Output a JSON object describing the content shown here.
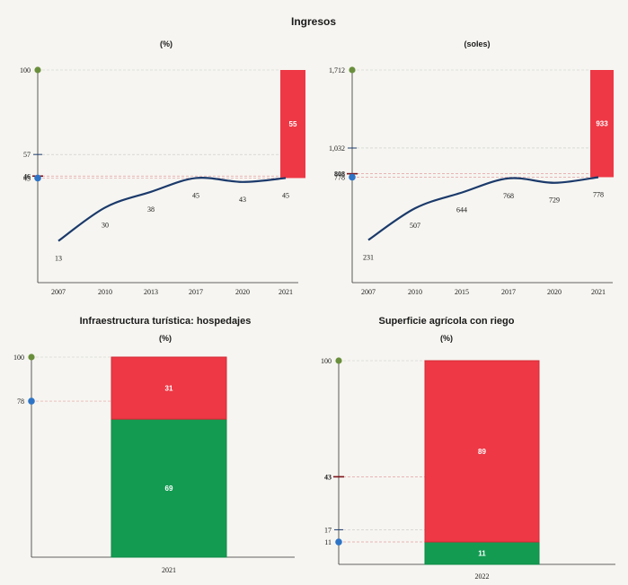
{
  "page": {
    "top_title": "Ingresos"
  },
  "colors": {
    "red": "#ee3845",
    "green": "#139b52",
    "line": "#1b3a6b",
    "blue_dot": "#2e74c6",
    "green_dot": "#6a8f3c",
    "dark_red": "#7a1216",
    "dashed_red": "#e4a0a0"
  },
  "chart_data": [
    {
      "type": "line",
      "subtitle": "(%)",
      "x": [
        "2007",
        "2010",
        "2013",
        "2017",
        "2020",
        "2021"
      ],
      "values": [
        13,
        30,
        38,
        45,
        43,
        45
      ],
      "data_labels": [
        "13",
        "30",
        "38",
        "45",
        "43",
        "45"
      ],
      "ylim": [
        0,
        100
      ],
      "axis_marks": [
        {
          "value": 100,
          "label": "100",
          "kind": "green-dot"
        },
        {
          "value": 57,
          "label": "57",
          "kind": "tick"
        },
        {
          "value": 46,
          "label": "46",
          "kind": "red-tick"
        },
        {
          "value": 45,
          "label": "45",
          "kind": "blue-dot"
        }
      ],
      "gap_bar": {
        "from": 45,
        "to": 100,
        "label": "55"
      }
    },
    {
      "type": "line",
      "subtitle": "(soles)",
      "x": [
        "2007",
        "2010",
        "2015",
        "2017",
        "2020",
        "2021"
      ],
      "values": [
        231,
        507,
        644,
        768,
        729,
        778
      ],
      "data_labels": [
        "231",
        "507",
        "644",
        "768",
        "729",
        "778"
      ],
      "ylim": [
        0,
        1712
      ],
      "axis_marks": [
        {
          "value": 1712,
          "label": "1,712",
          "kind": "green-dot"
        },
        {
          "value": 1032,
          "label": "1,032",
          "kind": "tick"
        },
        {
          "value": 808,
          "label": "808",
          "kind": "red-tick"
        },
        {
          "value": 778,
          "label": "778",
          "kind": "blue-dot"
        }
      ],
      "gap_bar": {
        "from": 778,
        "to": 1712,
        "label": "933"
      }
    },
    {
      "type": "bar",
      "title": "Infraestructura turística: hospedajes",
      "subtitle": "(%)",
      "categories": [
        "2021"
      ],
      "ylim": [
        0,
        100
      ],
      "series": [
        {
          "name": "",
          "values": [
            69
          ],
          "label": "69",
          "color_key": "green"
        },
        {
          "name": "",
          "values": [
            31
          ],
          "label": "31",
          "color_key": "red"
        }
      ],
      "axis_marks": [
        {
          "value": 100,
          "label": "100",
          "kind": "green-dot"
        },
        {
          "value": 78,
          "label": "78",
          "kind": "blue-dot"
        }
      ]
    },
    {
      "type": "bar",
      "title": "Superficie agrícola con riego",
      "subtitle": "(%)",
      "categories": [
        "2022"
      ],
      "ylim": [
        0,
        100
      ],
      "series": [
        {
          "name": "",
          "values": [
            11
          ],
          "label": "11",
          "color_key": "green"
        },
        {
          "name": "",
          "values": [
            89
          ],
          "label": "89",
          "color_key": "red"
        }
      ],
      "axis_marks": [
        {
          "value": 100,
          "label": "100",
          "kind": "green-dot"
        },
        {
          "value": 43,
          "label": "43",
          "kind": "red-tick"
        },
        {
          "value": 17,
          "label": "17",
          "kind": "tick"
        },
        {
          "value": 11,
          "label": "11",
          "kind": "blue-dot"
        }
      ]
    }
  ]
}
